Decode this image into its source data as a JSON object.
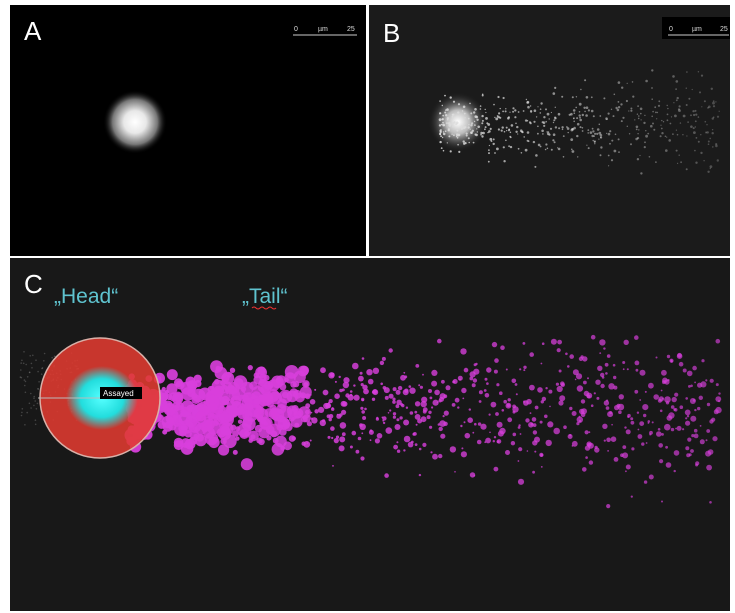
{
  "panels": [
    {
      "label": "A",
      "scale_bar": {
        "start": "0",
        "unit": "µm",
        "end": "25"
      }
    },
    {
      "label": "B",
      "scale_bar": {
        "start": "0",
        "unit": "µm",
        "end": "25"
      }
    },
    {
      "label": "C",
      "annotations": {
        "head": "„Head“",
        "tail": "„Tail“"
      },
      "marker_label": "Assayed"
    }
  ]
}
